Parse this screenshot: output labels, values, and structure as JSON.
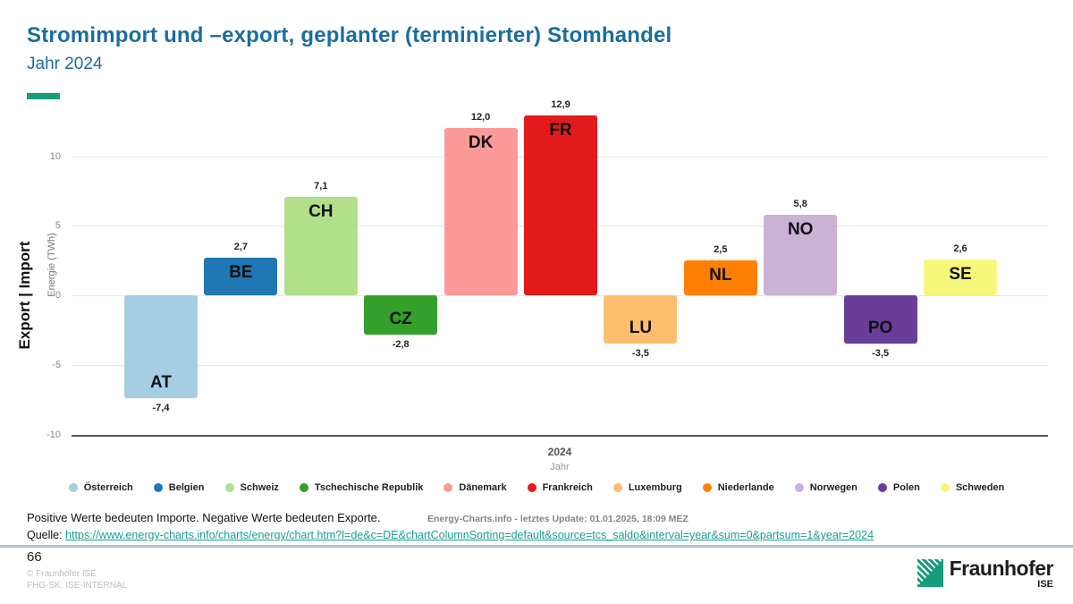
{
  "header": {
    "title": "Stromimport und –export, geplanter (terminierter) Stomhandel",
    "subtitle": "Jahr 2024"
  },
  "chart_data": {
    "type": "bar",
    "ylabel_outer": "Energie (TWh)",
    "ylabel_inner": "Export | Import",
    "xlabel_primary": "2024",
    "xlabel_secondary": "Jahr",
    "yticks": [
      10,
      5,
      0,
      -5,
      -10
    ],
    "ylim": [
      -10,
      13.5
    ],
    "grid": true,
    "legend_position": "bottom",
    "categories": [
      "AT",
      "BE",
      "CH",
      "CZ",
      "DK",
      "FR",
      "LU",
      "NL",
      "NO",
      "PO",
      "SE"
    ],
    "values": [
      -7.4,
      2.7,
      7.1,
      -2.8,
      12.0,
      12.9,
      -3.5,
      2.5,
      5.8,
      -3.5,
      2.6
    ],
    "value_labels": [
      "-7,4",
      "2,7",
      "7,1",
      "-2,8",
      "12,0",
      "12,9",
      "-3,5",
      "2,5",
      "5,8",
      "-3,5",
      "2,6"
    ],
    "colors": [
      "#a6cee3",
      "#1f78b4",
      "#b2df8a",
      "#33a02c",
      "#fb9a99",
      "#e31a1c",
      "#fdbf6f",
      "#ff7f00",
      "#cab2d6",
      "#6a3d9a",
      "#f7f77d"
    ],
    "legend": [
      {
        "label": "Österreich",
        "color": "#a6cee3"
      },
      {
        "label": "Belgien",
        "color": "#1f78b4"
      },
      {
        "label": "Schweiz",
        "color": "#b2df8a"
      },
      {
        "label": "Tschechische Republik",
        "color": "#33a02c"
      },
      {
        "label": "Dänemark",
        "color": "#fb9a99"
      },
      {
        "label": "Frankreich",
        "color": "#e31a1c"
      },
      {
        "label": "Luxemburg",
        "color": "#fdbf6f"
      },
      {
        "label": "Niederlande",
        "color": "#ff7f00"
      },
      {
        "label": "Norwegen",
        "color": "#cab2d6"
      },
      {
        "label": "Polen",
        "color": "#6a3d9a"
      },
      {
        "label": "Schweden",
        "color": "#f7f77d"
      }
    ]
  },
  "footer": {
    "note": "Positive Werte bedeuten Importe. Negative Werte bedeuten Exporte.",
    "update_info": "Energy-Charts.info - letztes Update: 01.01.2025, 18:09 MEZ",
    "source_label": "Quelle:",
    "source_url": "https://www.energy-charts.info/charts/energy/chart.htm?l=de&c=DE&chartColumnSorting=default&source=tcs_saldo&interval=year&sum=0&partsum=1&year=2024",
    "page_number": "66",
    "copyright_line1": "© Fraunhofer ISE",
    "copyright_line2": "FHG-SK: ISE-INTERNAL"
  },
  "logo": {
    "name": "Fraunhofer",
    "unit": "ISE",
    "brand_green": "#179c7d"
  }
}
